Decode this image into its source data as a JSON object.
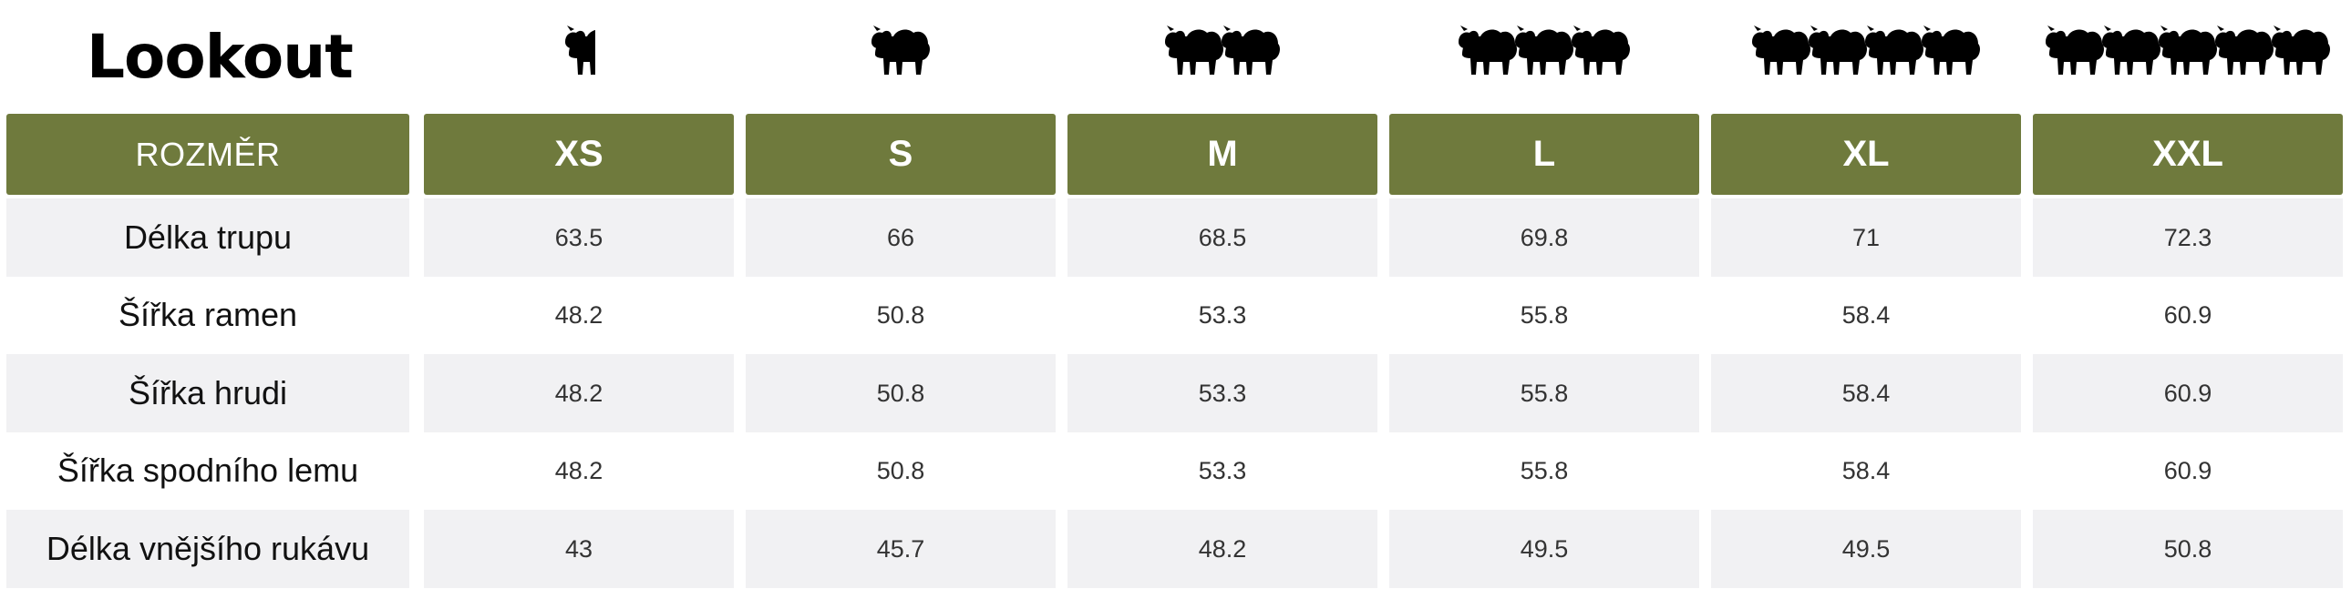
{
  "brand": {
    "title": "Lookout"
  },
  "icon": "sheep-icon",
  "colors": {
    "header_bg": "#6f7a3d",
    "header_text": "#ffffff",
    "row_shade": "#f1f1f3"
  },
  "sheep_counts": [
    0.5,
    1,
    2,
    3,
    4,
    5
  ],
  "table": {
    "header_label": "ROZMĚR",
    "sizes": [
      "XS",
      "S",
      "M",
      "L",
      "XL",
      "XXL"
    ],
    "rows": [
      {
        "label": "Délka trupu",
        "values": [
          "63.5",
          "66",
          "68.5",
          "69.8",
          "71",
          "72.3"
        ]
      },
      {
        "label": "Šířka ramen",
        "values": [
          "48.2",
          "50.8",
          "53.3",
          "55.8",
          "58.4",
          "60.9"
        ]
      },
      {
        "label": "Šířka hrudi",
        "values": [
          "48.2",
          "50.8",
          "53.3",
          "55.8",
          "58.4",
          "60.9"
        ]
      },
      {
        "label": "Šířka spodního lemu",
        "values": [
          "48.2",
          "50.8",
          "53.3",
          "55.8",
          "58.4",
          "60.9"
        ]
      },
      {
        "label": "Délka vnějšího rukávu",
        "values": [
          "43",
          "45.7",
          "48.2",
          "49.5",
          "49.5",
          "50.8"
        ]
      }
    ]
  }
}
